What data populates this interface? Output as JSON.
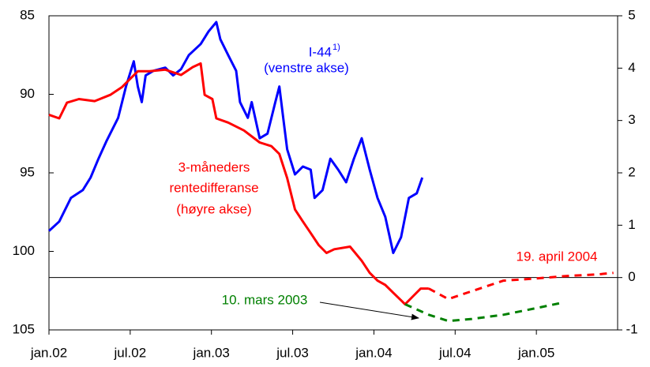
{
  "chart_data": {
    "type": "line",
    "xlim": [
      2002,
      2005.5
    ],
    "xticks": [
      {
        "value": 2002,
        "label": "jan.02"
      },
      {
        "value": 2002.5,
        "label": "jul.02"
      },
      {
        "value": 2003,
        "label": "jan.03"
      },
      {
        "value": 2003.5,
        "label": "jul.03"
      },
      {
        "value": 2004,
        "label": "jan.04"
      },
      {
        "value": 2004.5,
        "label": "jul.04"
      },
      {
        "value": 2005,
        "label": "jan.05"
      }
    ],
    "ylim": [
      105,
      85
    ],
    "yticks": [
      85,
      90,
      95,
      100,
      105
    ],
    "y2lim": [
      -1,
      5
    ],
    "y2ticks": [
      5,
      4,
      3,
      2,
      1,
      0,
      -1
    ],
    "series": [
      {
        "color": "#0000ff",
        "axis": "y",
        "style": "solid",
        "x": [
          2002.0,
          2002.063,
          2002.135,
          2002.208,
          2002.256,
          2002.305,
          2002.353,
          2002.426,
          2002.474,
          2002.522,
          2002.547,
          2002.571,
          2002.595,
          2002.643,
          2002.716,
          2002.764,
          2002.813,
          2002.861,
          2002.934,
          2002.982,
          2003.03,
          2003.055,
          2003.103,
          2003.152,
          2003.176,
          2003.224,
          2003.248,
          2003.297,
          2003.345,
          2003.393,
          2003.418,
          2003.442,
          2003.466,
          2003.514,
          2003.563,
          2003.611,
          2003.635,
          2003.684,
          2003.732,
          2003.78,
          2003.829,
          2003.877,
          2003.925,
          2003.974,
          2004.022,
          2004.07,
          2004.119,
          2004.167,
          2004.215,
          2004.264,
          2004.298
        ],
        "values": [
          98.7,
          98.1,
          96.6,
          96.1,
          95.3,
          94.1,
          93.0,
          91.5,
          89.5,
          87.9,
          89.5,
          90.5,
          88.8,
          88.5,
          88.3,
          88.8,
          88.4,
          87.5,
          86.8,
          86.0,
          85.4,
          86.5,
          87.5,
          88.5,
          90.5,
          91.5,
          90.5,
          92.8,
          92.5,
          90.5,
          89.5,
          91.5,
          93.5,
          95.1,
          94.6,
          94.8,
          96.6,
          96.1,
          94.1,
          94.8,
          95.6,
          94.1,
          92.8,
          94.8,
          96.6,
          97.8,
          100.1,
          99.1,
          96.6,
          96.3,
          95.3
        ]
      },
      {
        "color": "#ff0000",
        "axis": "y2",
        "style": "solid",
        "x": [
          2002.0,
          2002.063,
          2002.111,
          2002.184,
          2002.281,
          2002.377,
          2002.45,
          2002.498,
          2002.547,
          2002.619,
          2002.716,
          2002.813,
          2002.885,
          2002.934,
          2002.958,
          2003.006,
          2003.03,
          2003.103,
          2003.2,
          2003.297,
          2003.369,
          2003.418,
          2003.466,
          2003.514,
          2003.563,
          2003.611,
          2003.66,
          2003.708,
          2003.756,
          2003.853,
          2003.925,
          2003.974,
          2004.022,
          2004.07,
          2004.119,
          2004.192,
          2004.24,
          2004.288,
          2004.337
        ],
        "values": [
          3.11,
          3.04,
          3.34,
          3.41,
          3.37,
          3.49,
          3.64,
          3.79,
          3.94,
          3.94,
          3.97,
          3.87,
          4.02,
          4.09,
          3.49,
          3.41,
          3.04,
          2.96,
          2.81,
          2.58,
          2.51,
          2.36,
          1.9,
          1.3,
          1.07,
          0.85,
          0.62,
          0.47,
          0.54,
          0.59,
          0.32,
          0.09,
          -0.06,
          -0.14,
          -0.29,
          -0.51,
          -0.36,
          -0.21,
          -0.21
        ]
      },
      {
        "color": "#ff0000",
        "axis": "y2",
        "style": "dashed",
        "x": [
          2004.337,
          2004.458,
          2004.603,
          2004.797,
          2004.99,
          2005.184,
          2005.377,
          2005.474
        ],
        "values": [
          -0.21,
          -0.41,
          -0.26,
          -0.06,
          -0.02,
          0.03,
          0.06,
          0.09
        ]
      },
      {
        "color": "#008000",
        "axis": "y2",
        "style": "dashed",
        "x": [
          2004.192,
          2004.337,
          2004.458,
          2004.603,
          2004.797,
          2004.99,
          2005.16
        ],
        "values": [
          -0.51,
          -0.71,
          -0.83,
          -0.79,
          -0.71,
          -0.59,
          -0.48
        ]
      }
    ],
    "annotations": [
      {
        "text": "I-44",
        "color": "#0000ff"
      },
      {
        "text": "1)",
        "color": "#0000ff"
      },
      {
        "text": "(venstre akse)",
        "color": "#0000ff"
      },
      {
        "text": "3-måneders",
        "color": "#ff0000"
      },
      {
        "text": "rentedifferanse",
        "color": "#ff0000"
      },
      {
        "text": "(høyre akse)",
        "color": "#ff0000"
      },
      {
        "text": "19. april 2004",
        "color": "#ff0000"
      },
      {
        "text": "10. mars 2003",
        "color": "#008000"
      }
    ]
  }
}
